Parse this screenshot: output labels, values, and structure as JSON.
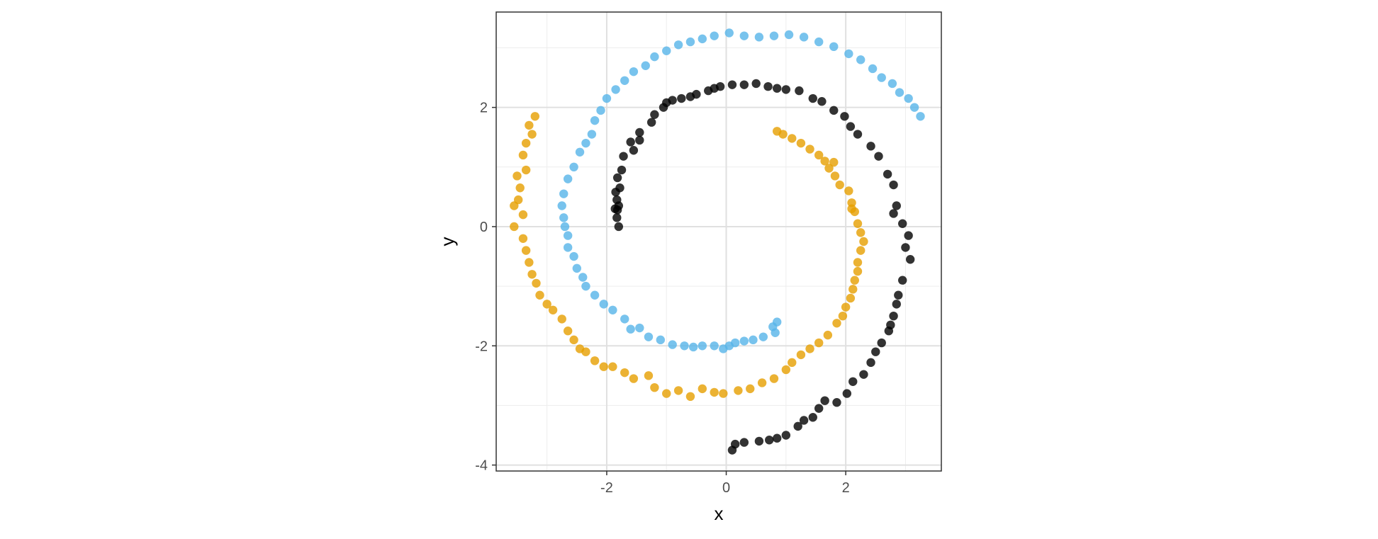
{
  "chart_data": {
    "type": "scatter",
    "title": "",
    "xlabel": "x",
    "ylabel": "y",
    "xlim": [
      -3.85,
      3.6
    ],
    "ylim": [
      -4.1,
      3.6
    ],
    "x_ticks": [
      -2,
      0,
      2
    ],
    "y_ticks": [
      -4,
      -2,
      0,
      2
    ],
    "x_tick_labels": [
      "-2",
      "0",
      "2"
    ],
    "y_tick_labels": [
      "-4",
      "-2",
      "0",
      "2"
    ],
    "grid": true,
    "legend": "none",
    "colors": [
      "#000000",
      "#56b4e9",
      "#e69f00"
    ],
    "series": [
      {
        "color": "#000000",
        "points": [
          [
            -1.8,
            0.0
          ],
          [
            -1.83,
            0.15
          ],
          [
            -1.82,
            0.28
          ],
          [
            -1.86,
            0.3
          ],
          [
            -1.8,
            0.35
          ],
          [
            -1.83,
            0.45
          ],
          [
            -1.85,
            0.58
          ],
          [
            -1.78,
            0.65
          ],
          [
            -1.82,
            0.82
          ],
          [
            -1.75,
            0.95
          ],
          [
            -1.72,
            1.18
          ],
          [
            -1.55,
            1.28
          ],
          [
            -1.6,
            1.42
          ],
          [
            -1.45,
            1.45
          ],
          [
            -1.45,
            1.58
          ],
          [
            -1.25,
            1.75
          ],
          [
            -1.2,
            1.88
          ],
          [
            -1.05,
            2.0
          ],
          [
            -1.0,
            2.08
          ],
          [
            -0.9,
            2.12
          ],
          [
            -0.75,
            2.15
          ],
          [
            -0.6,
            2.18
          ],
          [
            -0.5,
            2.22
          ],
          [
            -0.3,
            2.28
          ],
          [
            -0.2,
            2.32
          ],
          [
            -0.1,
            2.35
          ],
          [
            0.1,
            2.38
          ],
          [
            0.3,
            2.38
          ],
          [
            0.5,
            2.4
          ],
          [
            0.7,
            2.35
          ],
          [
            0.85,
            2.32
          ],
          [
            1.0,
            2.3
          ],
          [
            1.22,
            2.28
          ],
          [
            1.45,
            2.15
          ],
          [
            1.6,
            2.1
          ],
          [
            1.8,
            1.95
          ],
          [
            1.98,
            1.85
          ],
          [
            2.08,
            1.68
          ],
          [
            2.2,
            1.55
          ],
          [
            2.42,
            1.35
          ],
          [
            2.55,
            1.18
          ],
          [
            2.7,
            0.88
          ],
          [
            2.8,
            0.7
          ],
          [
            2.85,
            0.35
          ],
          [
            2.8,
            0.22
          ],
          [
            2.95,
            0.05
          ],
          [
            3.05,
            -0.15
          ],
          [
            3.0,
            -0.35
          ],
          [
            3.08,
            -0.55
          ],
          [
            2.95,
            -0.9
          ],
          [
            2.88,
            -1.15
          ],
          [
            2.85,
            -1.3
          ],
          [
            2.8,
            -1.5
          ],
          [
            2.75,
            -1.65
          ],
          [
            2.72,
            -1.75
          ],
          [
            2.6,
            -1.95
          ],
          [
            2.5,
            -2.1
          ],
          [
            2.42,
            -2.28
          ],
          [
            2.3,
            -2.48
          ],
          [
            2.12,
            -2.6
          ],
          [
            2.02,
            -2.8
          ],
          [
            1.85,
            -2.95
          ],
          [
            1.65,
            -2.92
          ],
          [
            1.55,
            -3.05
          ],
          [
            1.45,
            -3.2
          ],
          [
            1.3,
            -3.25
          ],
          [
            1.2,
            -3.35
          ],
          [
            1.0,
            -3.5
          ],
          [
            0.85,
            -3.55
          ],
          [
            0.72,
            -3.58
          ],
          [
            0.55,
            -3.6
          ],
          [
            0.3,
            -3.62
          ],
          [
            0.15,
            -3.65
          ],
          [
            0.1,
            -3.75
          ]
        ]
      },
      {
        "color": "#56b4e9",
        "points": [
          [
            0.85,
            -1.6
          ],
          [
            0.78,
            -1.68
          ],
          [
            0.82,
            -1.78
          ],
          [
            0.62,
            -1.85
          ],
          [
            0.45,
            -1.9
          ],
          [
            0.3,
            -1.92
          ],
          [
            0.15,
            -1.95
          ],
          [
            0.05,
            -2.0
          ],
          [
            -0.05,
            -2.05
          ],
          [
            -0.2,
            -2.0
          ],
          [
            -0.4,
            -2.0
          ],
          [
            -0.55,
            -2.02
          ],
          [
            -0.7,
            -2.0
          ],
          [
            -0.9,
            -1.98
          ],
          [
            -1.1,
            -1.9
          ],
          [
            -1.3,
            -1.85
          ],
          [
            -1.45,
            -1.7
          ],
          [
            -1.6,
            -1.72
          ],
          [
            -1.7,
            -1.55
          ],
          [
            -1.9,
            -1.4
          ],
          [
            -2.05,
            -1.3
          ],
          [
            -2.2,
            -1.15
          ],
          [
            -2.35,
            -1.0
          ],
          [
            -2.4,
            -0.85
          ],
          [
            -2.5,
            -0.7
          ],
          [
            -2.55,
            -0.5
          ],
          [
            -2.65,
            -0.35
          ],
          [
            -2.65,
            -0.15
          ],
          [
            -2.7,
            0.0
          ],
          [
            -2.72,
            0.15
          ],
          [
            -2.75,
            0.35
          ],
          [
            -2.72,
            0.55
          ],
          [
            -2.65,
            0.8
          ],
          [
            -2.55,
            1.0
          ],
          [
            -2.45,
            1.25
          ],
          [
            -2.35,
            1.4
          ],
          [
            -2.25,
            1.55
          ],
          [
            -2.2,
            1.78
          ],
          [
            -2.1,
            1.95
          ],
          [
            -2.0,
            2.15
          ],
          [
            -1.85,
            2.3
          ],
          [
            -1.7,
            2.45
          ],
          [
            -1.55,
            2.6
          ],
          [
            -1.35,
            2.7
          ],
          [
            -1.2,
            2.85
          ],
          [
            -1.0,
            2.95
          ],
          [
            -0.8,
            3.05
          ],
          [
            -0.6,
            3.1
          ],
          [
            -0.4,
            3.15
          ],
          [
            -0.2,
            3.2
          ],
          [
            0.05,
            3.25
          ],
          [
            0.3,
            3.2
          ],
          [
            0.55,
            3.18
          ],
          [
            0.8,
            3.2
          ],
          [
            1.05,
            3.22
          ],
          [
            1.3,
            3.18
          ],
          [
            1.55,
            3.1
          ],
          [
            1.8,
            3.02
          ],
          [
            2.05,
            2.9
          ],
          [
            2.25,
            2.8
          ],
          [
            2.45,
            2.65
          ],
          [
            2.6,
            2.5
          ],
          [
            2.78,
            2.4
          ],
          [
            2.9,
            2.25
          ],
          [
            3.05,
            2.15
          ],
          [
            3.15,
            2.0
          ],
          [
            3.25,
            1.85
          ]
        ]
      },
      {
        "color": "#e69f00",
        "points": [
          [
            -3.2,
            1.85
          ],
          [
            -3.3,
            1.7
          ],
          [
            -3.25,
            1.55
          ],
          [
            -3.35,
            1.4
          ],
          [
            -3.4,
            1.2
          ],
          [
            -3.35,
            0.95
          ],
          [
            -3.5,
            0.85
          ],
          [
            -3.45,
            0.65
          ],
          [
            -3.48,
            0.45
          ],
          [
            -3.55,
            0.35
          ],
          [
            -3.4,
            0.2
          ],
          [
            -3.55,
            0.0
          ],
          [
            -3.4,
            -0.2
          ],
          [
            -3.35,
            -0.4
          ],
          [
            -3.3,
            -0.6
          ],
          [
            -3.25,
            -0.8
          ],
          [
            -3.18,
            -0.95
          ],
          [
            -3.12,
            -1.15
          ],
          [
            -3.0,
            -1.3
          ],
          [
            -2.9,
            -1.4
          ],
          [
            -2.75,
            -1.55
          ],
          [
            -2.65,
            -1.75
          ],
          [
            -2.55,
            -1.9
          ],
          [
            -2.45,
            -2.05
          ],
          [
            -2.35,
            -2.1
          ],
          [
            -2.2,
            -2.25
          ],
          [
            -2.05,
            -2.35
          ],
          [
            -1.9,
            -2.35
          ],
          [
            -1.7,
            -2.45
          ],
          [
            -1.55,
            -2.55
          ],
          [
            -1.3,
            -2.5
          ],
          [
            -1.2,
            -2.7
          ],
          [
            -1.0,
            -2.8
          ],
          [
            -0.8,
            -2.75
          ],
          [
            -0.6,
            -2.85
          ],
          [
            -0.4,
            -2.72
          ],
          [
            -0.2,
            -2.78
          ],
          [
            -0.05,
            -2.8
          ],
          [
            0.2,
            -2.75
          ],
          [
            0.4,
            -2.72
          ],
          [
            0.6,
            -2.62
          ],
          [
            0.8,
            -2.55
          ],
          [
            1.0,
            -2.4
          ],
          [
            1.1,
            -2.28
          ],
          [
            1.25,
            -2.15
          ],
          [
            1.4,
            -2.05
          ],
          [
            1.55,
            -1.95
          ],
          [
            1.7,
            -1.82
          ],
          [
            1.85,
            -1.62
          ],
          [
            1.95,
            -1.5
          ],
          [
            2.0,
            -1.35
          ],
          [
            2.08,
            -1.2
          ],
          [
            2.12,
            -1.05
          ],
          [
            2.15,
            -0.9
          ],
          [
            2.2,
            -0.75
          ],
          [
            2.2,
            -0.6
          ],
          [
            2.25,
            -0.4
          ],
          [
            2.3,
            -0.25
          ],
          [
            2.25,
            -0.1
          ],
          [
            2.2,
            0.05
          ],
          [
            2.15,
            0.25
          ],
          [
            2.1,
            0.4
          ],
          [
            2.05,
            0.6
          ],
          [
            1.9,
            0.7
          ],
          [
            1.82,
            0.85
          ],
          [
            1.72,
            0.98
          ],
          [
            1.65,
            1.1
          ],
          [
            1.55,
            1.2
          ],
          [
            1.4,
            1.3
          ],
          [
            1.25,
            1.4
          ],
          [
            1.1,
            1.48
          ],
          [
            0.95,
            1.55
          ],
          [
            0.85,
            1.6
          ],
          [
            1.8,
            1.08
          ],
          [
            2.1,
            0.3
          ]
        ]
      }
    ]
  }
}
